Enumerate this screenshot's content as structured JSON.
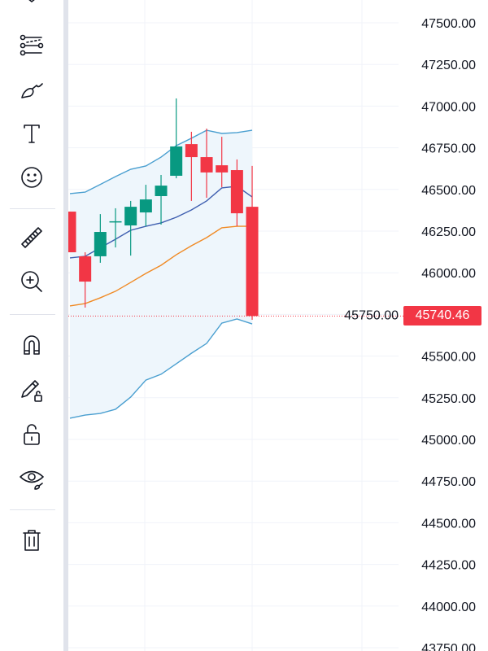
{
  "toolbar": {
    "tools": [
      {
        "name": "pattern-tool",
        "icon": "pattern-icon"
      },
      {
        "name": "forecast-tool",
        "icon": "forecast-lines-icon"
      },
      {
        "name": "brush-tool",
        "icon": "brush-icon"
      },
      {
        "name": "text-tool",
        "icon": "text-icon"
      },
      {
        "name": "emoji-tool",
        "icon": "smiley-icon"
      },
      {
        "name": "measure-tool",
        "icon": "ruler-icon"
      },
      {
        "name": "zoom-in-tool",
        "icon": "zoom-in-icon"
      },
      {
        "name": "magnet-mode",
        "icon": "magnet-icon"
      },
      {
        "name": "stay-in-drawing-mode",
        "icon": "pencil-lock-icon"
      },
      {
        "name": "lock-drawings",
        "icon": "unlock-icon"
      },
      {
        "name": "hide-drawings",
        "icon": "eye-brush-icon"
      },
      {
        "name": "remove-drawings",
        "icon": "trash-icon"
      }
    ]
  },
  "chart_data": {
    "type": "candlestick",
    "ylim": [
      43750,
      47600
    ],
    "y_ticks": [
      "47500.00",
      "47250.00",
      "47000.00",
      "46750.00",
      "46500.00",
      "46250.00",
      "46000.00",
      "45750.00",
      "45500.00",
      "45250.00",
      "45000.00",
      "44750.00",
      "44500.00",
      "44250.00",
      "44000.00",
      "43750.00"
    ],
    "y_tick_values": [
      47500,
      47250,
      47000,
      46750,
      46500,
      46250,
      46000,
      45750,
      45500,
      45250,
      45000,
      44750,
      44500,
      44250,
      44000,
      43750
    ],
    "grid": true,
    "current_price": "45740.46",
    "current_price_value": 45740.46,
    "colors": {
      "up": "#089981",
      "down": "#f23645",
      "upper_band": "#4a9fd0",
      "basis": "#3f5fb0",
      "ma": "#f08a24",
      "band_fill": "#eef6fc",
      "price_tag": "#f23645"
    },
    "candles": [
      {
        "o": 46367,
        "h": 46367,
        "l": 46123,
        "c": 46123
      },
      {
        "o": 46099,
        "h": 46123,
        "l": 45791,
        "c": 45947
      },
      {
        "o": 46099,
        "h": 46352,
        "l": 46060,
        "c": 46245
      },
      {
        "o": 46309,
        "h": 46387,
        "l": 46152,
        "c": 46309
      },
      {
        "o": 46284,
        "h": 46431,
        "l": 46103,
        "c": 46396
      },
      {
        "o": 46362,
        "h": 46528,
        "l": 46279,
        "c": 46440
      },
      {
        "o": 46460,
        "h": 46587,
        "l": 46289,
        "c": 46523
      },
      {
        "o": 46582,
        "h": 47046,
        "l": 46567,
        "c": 46758
      },
      {
        "o": 46772,
        "h": 46846,
        "l": 46431,
        "c": 46694
      },
      {
        "o": 46694,
        "h": 46865,
        "l": 46450,
        "c": 46602
      },
      {
        "o": 46645,
        "h": 46816,
        "l": 46514,
        "c": 46602
      },
      {
        "o": 46616,
        "h": 46680,
        "l": 46279,
        "c": 46357
      },
      {
        "o": 46396,
        "h": 46641,
        "l": 45718,
        "c": 45740.46
      }
    ],
    "series": [
      {
        "values": [
          46475,
          46484,
          46530,
          46577,
          46621,
          46641,
          46694,
          46763,
          46807,
          46855,
          46836,
          46841,
          46855
        ]
      },
      {
        "values": [
          46089,
          46099,
          46150,
          46201,
          46255,
          46279,
          46299,
          46333,
          46377,
          46431,
          46509,
          46519,
          46455
        ]
      },
      {
        "values": [
          45127,
          45146,
          45156,
          45181,
          45254,
          45356,
          45391,
          45454,
          45517,
          45576,
          45698,
          45723,
          45693
        ]
      },
      {
        "values": [
          45801,
          45815,
          45850,
          45889,
          45942,
          45996,
          46045,
          46108,
          46162,
          46211,
          46270,
          46279,
          46279
        ]
      }
    ]
  }
}
